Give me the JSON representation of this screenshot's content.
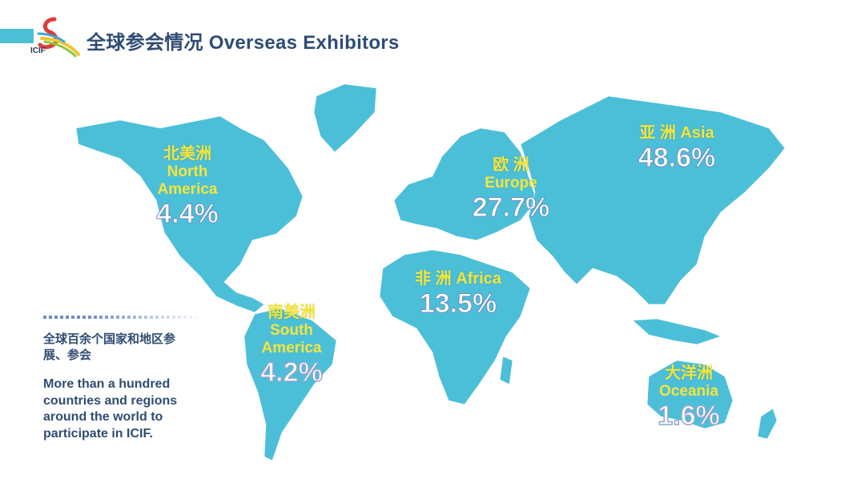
{
  "header": {
    "title": "全球参会情况 Overseas Exhibitors",
    "logo_text": "ICIF"
  },
  "regions": {
    "north_america": {
      "cn": "北美洲",
      "en_line1": "North",
      "en_line2": "America",
      "percent": "4.4%",
      "value": 4.4
    },
    "south_america": {
      "cn": "南美洲",
      "en_line1": "South",
      "en_line2": "America",
      "percent": "4.2%",
      "value": 4.2
    },
    "europe": {
      "cn": "欧 洲",
      "en": "Europe",
      "percent": "27.7%",
      "value": 27.7
    },
    "africa": {
      "cn_en": "非 洲  Africa",
      "percent": "13.5%",
      "value": 13.5
    },
    "asia": {
      "cn_en": "亚 洲  Asia",
      "percent": "48.6%",
      "value": 48.6
    },
    "oceania": {
      "cn": "大洋洲",
      "en": "Oceania",
      "percent": "1.6%",
      "value": 1.6
    }
  },
  "note": {
    "cn": "全球百余个国家和地区参展、参会",
    "en": "More than a hundred countries and regions around the world to participate in ICIF."
  },
  "colors": {
    "map": "#4cbfd8",
    "title": "#2f4c73",
    "label": "#f4e53a",
    "percent": "#ffffff"
  }
}
